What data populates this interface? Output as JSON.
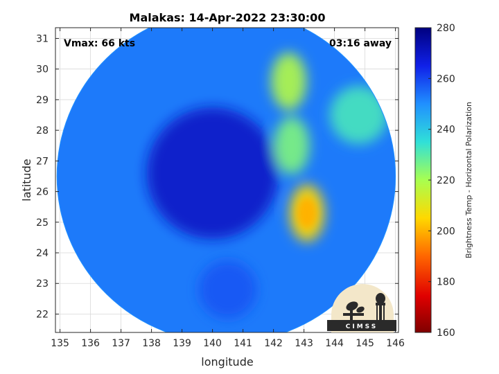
{
  "chart_data": {
    "type": "heatmap",
    "title": "Malakas: 14-Apr-2022 23:30:00",
    "xlabel": "longitude",
    "ylabel": "latitude",
    "xlim": [
      134.85,
      146.1
    ],
    "ylim": [
      21.4,
      31.35
    ],
    "x_ticks": [
      135,
      136,
      137,
      138,
      139,
      140,
      141,
      142,
      143,
      144,
      145,
      146
    ],
    "y_ticks": [
      22,
      23,
      24,
      25,
      26,
      27,
      28,
      29,
      30,
      31
    ],
    "grid": true,
    "annotations": {
      "vmax": "Vmax: 66 kts",
      "time_away": "03:16 away"
    },
    "colorbar": {
      "label": "Brightness Temp - Horizontal Polarization",
      "range": [
        160,
        280
      ],
      "ticks": [
        160,
        180,
        200,
        220,
        240,
        260,
        280
      ],
      "colormap": "jet"
    },
    "swath": {
      "center_lon": 140.45,
      "center_lat": 26.5,
      "radius_deg": 5.55
    },
    "features": [
      {
        "lon": 140.0,
        "lat": 26.6,
        "value": 270,
        "kind": "storm-center-cold"
      },
      {
        "lon": 143.1,
        "lat": 25.3,
        "value": 205,
        "kind": "warm-band"
      },
      {
        "lon": 142.6,
        "lat": 27.5,
        "value": 225,
        "kind": "warm-band"
      },
      {
        "lon": 142.5,
        "lat": 29.6,
        "value": 218,
        "kind": "warm-band"
      },
      {
        "lon": 144.8,
        "lat": 28.5,
        "value": 232,
        "kind": "warm-area"
      },
      {
        "lon": 140.5,
        "lat": 22.8,
        "value": 258,
        "kind": "outer-area"
      }
    ]
  },
  "logo": {
    "text": "CIMSS"
  }
}
